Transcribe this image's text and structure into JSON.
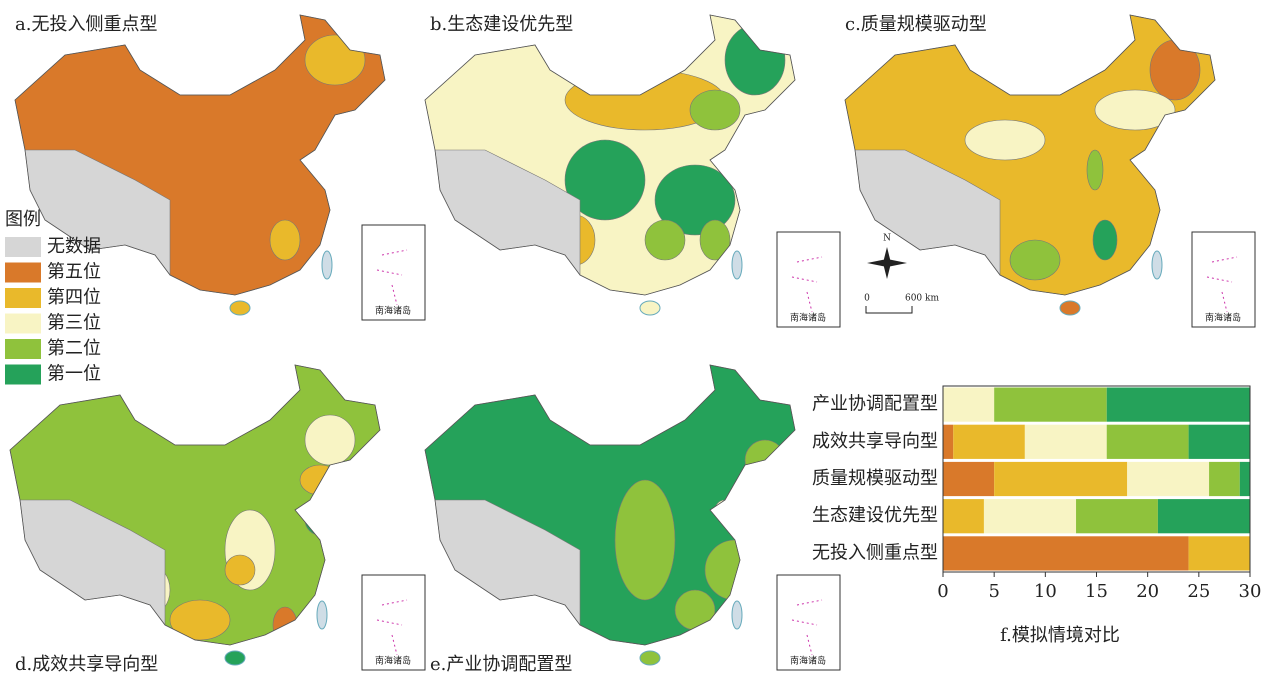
{
  "maps": {
    "panels": [
      "a.无投入侧重点型",
      "b.生态建设优先型",
      "c.质量规模驱动型",
      "d.成效共享导向型",
      "e.产业协调配置型"
    ],
    "legend_title": "图例",
    "no_data": {
      "label": "无数据",
      "color": "#d6d6d6"
    },
    "inset_label": "南海诸岛",
    "north": "N",
    "scale_zero": "0",
    "scale_end": "600 km"
  },
  "chart_data": {
    "type": "bar",
    "orientation": "horizontal",
    "stacked": true,
    "title": "f.模拟情境对比",
    "categories": [
      "无投入侧重点型",
      "生态建设优先型",
      "质量规模驱动型",
      "成效共享导向型",
      "产业协调配置型"
    ],
    "series": [
      {
        "name": "第五位",
        "color": "#d9792a",
        "values": [
          24,
          0,
          5,
          1,
          0
        ]
      },
      {
        "name": "第四位",
        "color": "#e9b92b",
        "values": [
          6,
          4,
          13,
          7,
          0
        ]
      },
      {
        "name": "第三位",
        "color": "#f8f4c4",
        "values": [
          0,
          9,
          8,
          8,
          5
        ]
      },
      {
        "name": "第二位",
        "color": "#8fc23c",
        "values": [
          0,
          8,
          3,
          8,
          11
        ]
      },
      {
        "name": "第一位",
        "color": "#25a25a",
        "values": [
          0,
          9,
          1,
          6,
          14
        ]
      }
    ],
    "xlim": [
      0,
      30
    ],
    "xticks": [
      0,
      5,
      10,
      15,
      20,
      25,
      30
    ]
  }
}
